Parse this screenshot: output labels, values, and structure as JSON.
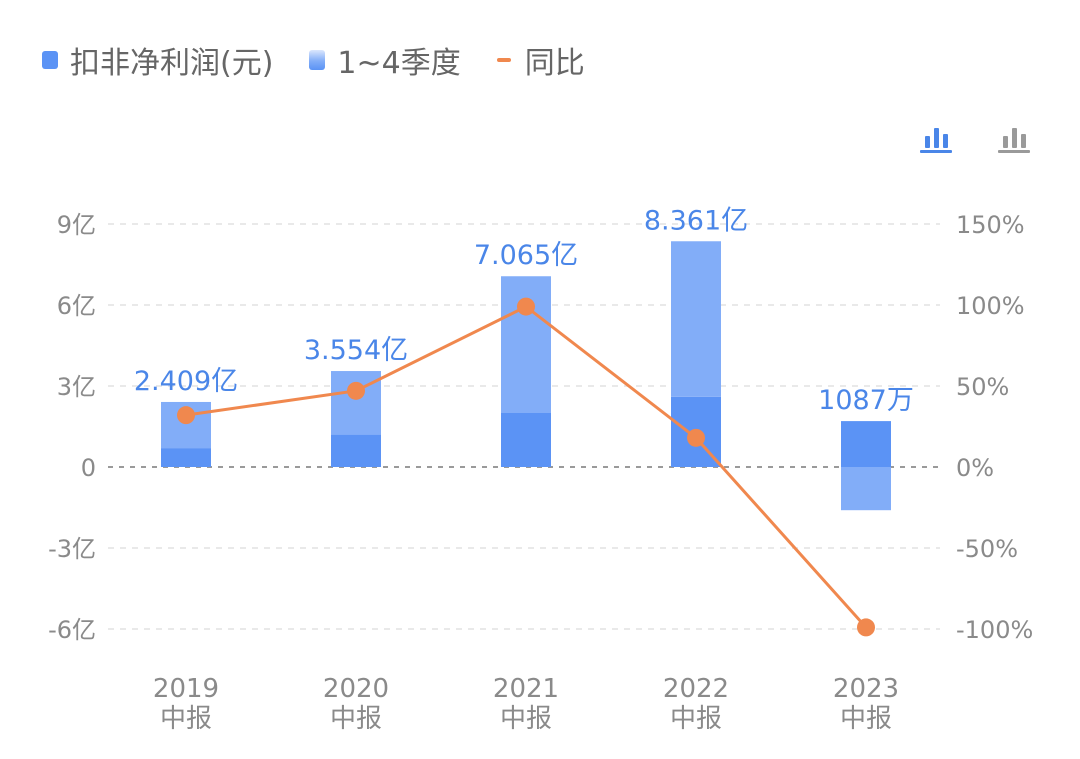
{
  "legend": [
    {
      "label": "扣非净利润(元)",
      "kind": "solid"
    },
    {
      "label": "1~4季度",
      "kind": "gradient"
    },
    {
      "label": "同比",
      "kind": "line"
    }
  ],
  "colors": {
    "bar_dark": "#5b93f5",
    "bar_light": "#82adf8",
    "line": "#f0884e",
    "label": "#4a86e8",
    "grid": "#e2e2e2",
    "zero": "#9a9a9a",
    "icon_active": "#4a86e8",
    "icon_inactive": "#9a9a9a"
  },
  "icons": {
    "view_toggle_active": "bar-chart-icon",
    "view_toggle_inactive": "bar-chart-icon"
  },
  "chart_data": {
    "type": "bar",
    "categories": [
      [
        "2019",
        "中报"
      ],
      [
        "2020",
        "中报"
      ],
      [
        "2021",
        "中报"
      ],
      [
        "2022",
        "中报"
      ],
      [
        "2023",
        "中报"
      ]
    ],
    "series": [
      {
        "name": "扣非净利润(元)",
        "values": [
          2.409,
          3.554,
          7.065,
          8.361,
          0.1087
        ],
        "unit": "亿",
        "labels": [
          "2.409亿",
          "3.554亿",
          "7.065亿",
          "8.361亿",
          "1087万"
        ]
      },
      {
        "name": "1~4季度",
        "segments": [
          [
            0.7,
            1.709
          ],
          [
            1.2,
            2.354
          ],
          [
            2.0,
            5.065
          ],
          [
            2.6,
            5.761
          ],
          [
            1.7,
            -1.6
          ]
        ]
      },
      {
        "name": "同比",
        "values": [
          32,
          47,
          99,
          18,
          -99
        ],
        "unit": "%",
        "axis": "right"
      }
    ],
    "y_left": {
      "ticks": [
        -6,
        -3,
        0,
        3,
        6,
        9
      ],
      "labels": [
        "-6亿",
        "-3亿",
        "0",
        "3亿",
        "6亿",
        "9亿"
      ],
      "ylim": [
        -6,
        9
      ]
    },
    "y_right": {
      "ticks": [
        -100,
        -50,
        0,
        50,
        100,
        150
      ],
      "labels": [
        "-100%",
        "-50%",
        "0%",
        "50%",
        "100%",
        "150%"
      ],
      "ylim": [
        -100,
        150
      ]
    },
    "grid": true,
    "legend_position": "top-left"
  }
}
